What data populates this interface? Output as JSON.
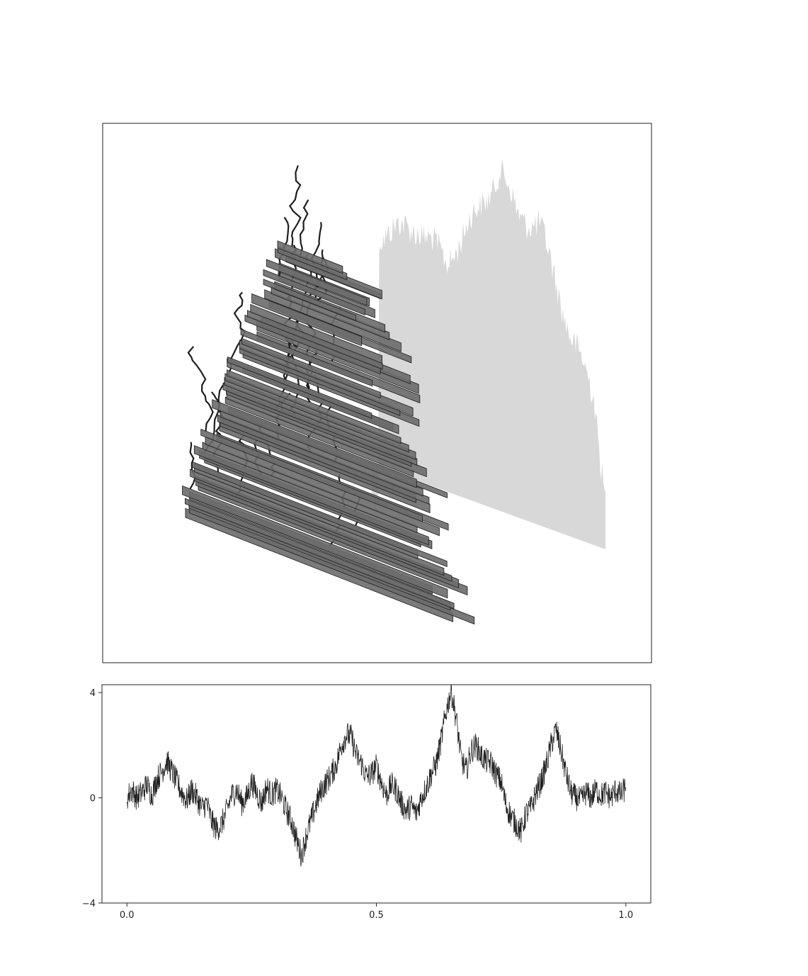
{
  "figure": {
    "background": "#ffffff",
    "axes_color": "#222222"
  },
  "chart_data": [
    {
      "type": "area",
      "panel": "top",
      "description_visible": false,
      "axes_visible": false,
      "ticks_visible": false,
      "front_fill_color": "#6b6b6b",
      "front_edge_color": "#1e1e1e",
      "shadow_color": "#d8d8d8",
      "n_layers": 60,
      "title": "",
      "xlabel": "",
      "ylabel": ""
    },
    {
      "type": "line",
      "panel": "bottom",
      "line_color": "#222222",
      "xlim": [
        -0.05,
        1.05
      ],
      "ylim": [
        -4,
        4.3
      ],
      "x_ticks": [
        0.0,
        0.5,
        1.0
      ],
      "x_tick_labels": [
        "0.0",
        "0.5",
        "1.0"
      ],
      "y_ticks": [
        -4,
        0,
        4
      ],
      "y_tick_labels": [
        "−4",
        "0",
        "4"
      ],
      "title": "",
      "xlabel": "",
      "ylabel": "",
      "series": [
        {
          "x": [
            0.0,
            0.01,
            0.02,
            0.03,
            0.04,
            0.05,
            0.06,
            0.07,
            0.08,
            0.09,
            0.1,
            0.11,
            0.12,
            0.13,
            0.14,
            0.15,
            0.16,
            0.17,
            0.18,
            0.19,
            0.2,
            0.21,
            0.22,
            0.23,
            0.24,
            0.25,
            0.26,
            0.27,
            0.28,
            0.29,
            0.3,
            0.31,
            0.32,
            0.33,
            0.34,
            0.35,
            0.36,
            0.37,
            0.38,
            0.39,
            0.4,
            0.41,
            0.42,
            0.43,
            0.44,
            0.45,
            0.46,
            0.47,
            0.48,
            0.49,
            0.5,
            0.51,
            0.52,
            0.53,
            0.54,
            0.55,
            0.56,
            0.57,
            0.58,
            0.59,
            0.6,
            0.61,
            0.62,
            0.63,
            0.64,
            0.65,
            0.66,
            0.67,
            0.68,
            0.69,
            0.7,
            0.71,
            0.72,
            0.73,
            0.74,
            0.75,
            0.76,
            0.77,
            0.78,
            0.79,
            0.8,
            0.81,
            0.82,
            0.83,
            0.84,
            0.85,
            0.86,
            0.87,
            0.88,
            0.89,
            0.9,
            0.91,
            0.92,
            0.93,
            0.94,
            0.95,
            0.96,
            0.97,
            0.98,
            0.99,
            1.0
          ],
          "y": [
            0.0,
            0.3,
            0.0,
            0.2,
            0.5,
            0.1,
            0.7,
            1.0,
            1.4,
            1.0,
            0.6,
            0.2,
            -0.1,
            0.3,
            0.0,
            -0.4,
            -0.2,
            -0.9,
            -1.2,
            -1.0,
            -0.5,
            0.1,
            0.3,
            -0.2,
            0.0,
            0.6,
            0.2,
            -0.2,
            0.4,
            0.1,
            0.3,
            0.0,
            -0.5,
            -0.9,
            -1.6,
            -2.2,
            -1.4,
            -0.8,
            -0.2,
            0.3,
            0.6,
            0.9,
            1.3,
            2.0,
            2.4,
            2.3,
            1.6,
            1.3,
            0.8,
            0.9,
            1.2,
            0.6,
            0.1,
            0.5,
            0.3,
            -0.2,
            -0.5,
            -0.3,
            -0.6,
            0.0,
            0.4,
            0.9,
            1.3,
            2.2,
            3.3,
            4.1,
            3.0,
            1.5,
            1.0,
            1.8,
            2.0,
            1.6,
            1.4,
            1.3,
            0.9,
            0.6,
            -0.3,
            -0.7,
            -1.0,
            -1.3,
            -0.6,
            -0.4,
            0.2,
            0.6,
            1.2,
            2.0,
            2.6,
            1.8,
            0.9,
            0.2,
            0.0,
            -0.1,
            0.2,
            0.0,
            0.3,
            0.1,
            0.2,
            0.0,
            0.3,
            0.1,
            0.4
          ]
        }
      ]
    }
  ]
}
